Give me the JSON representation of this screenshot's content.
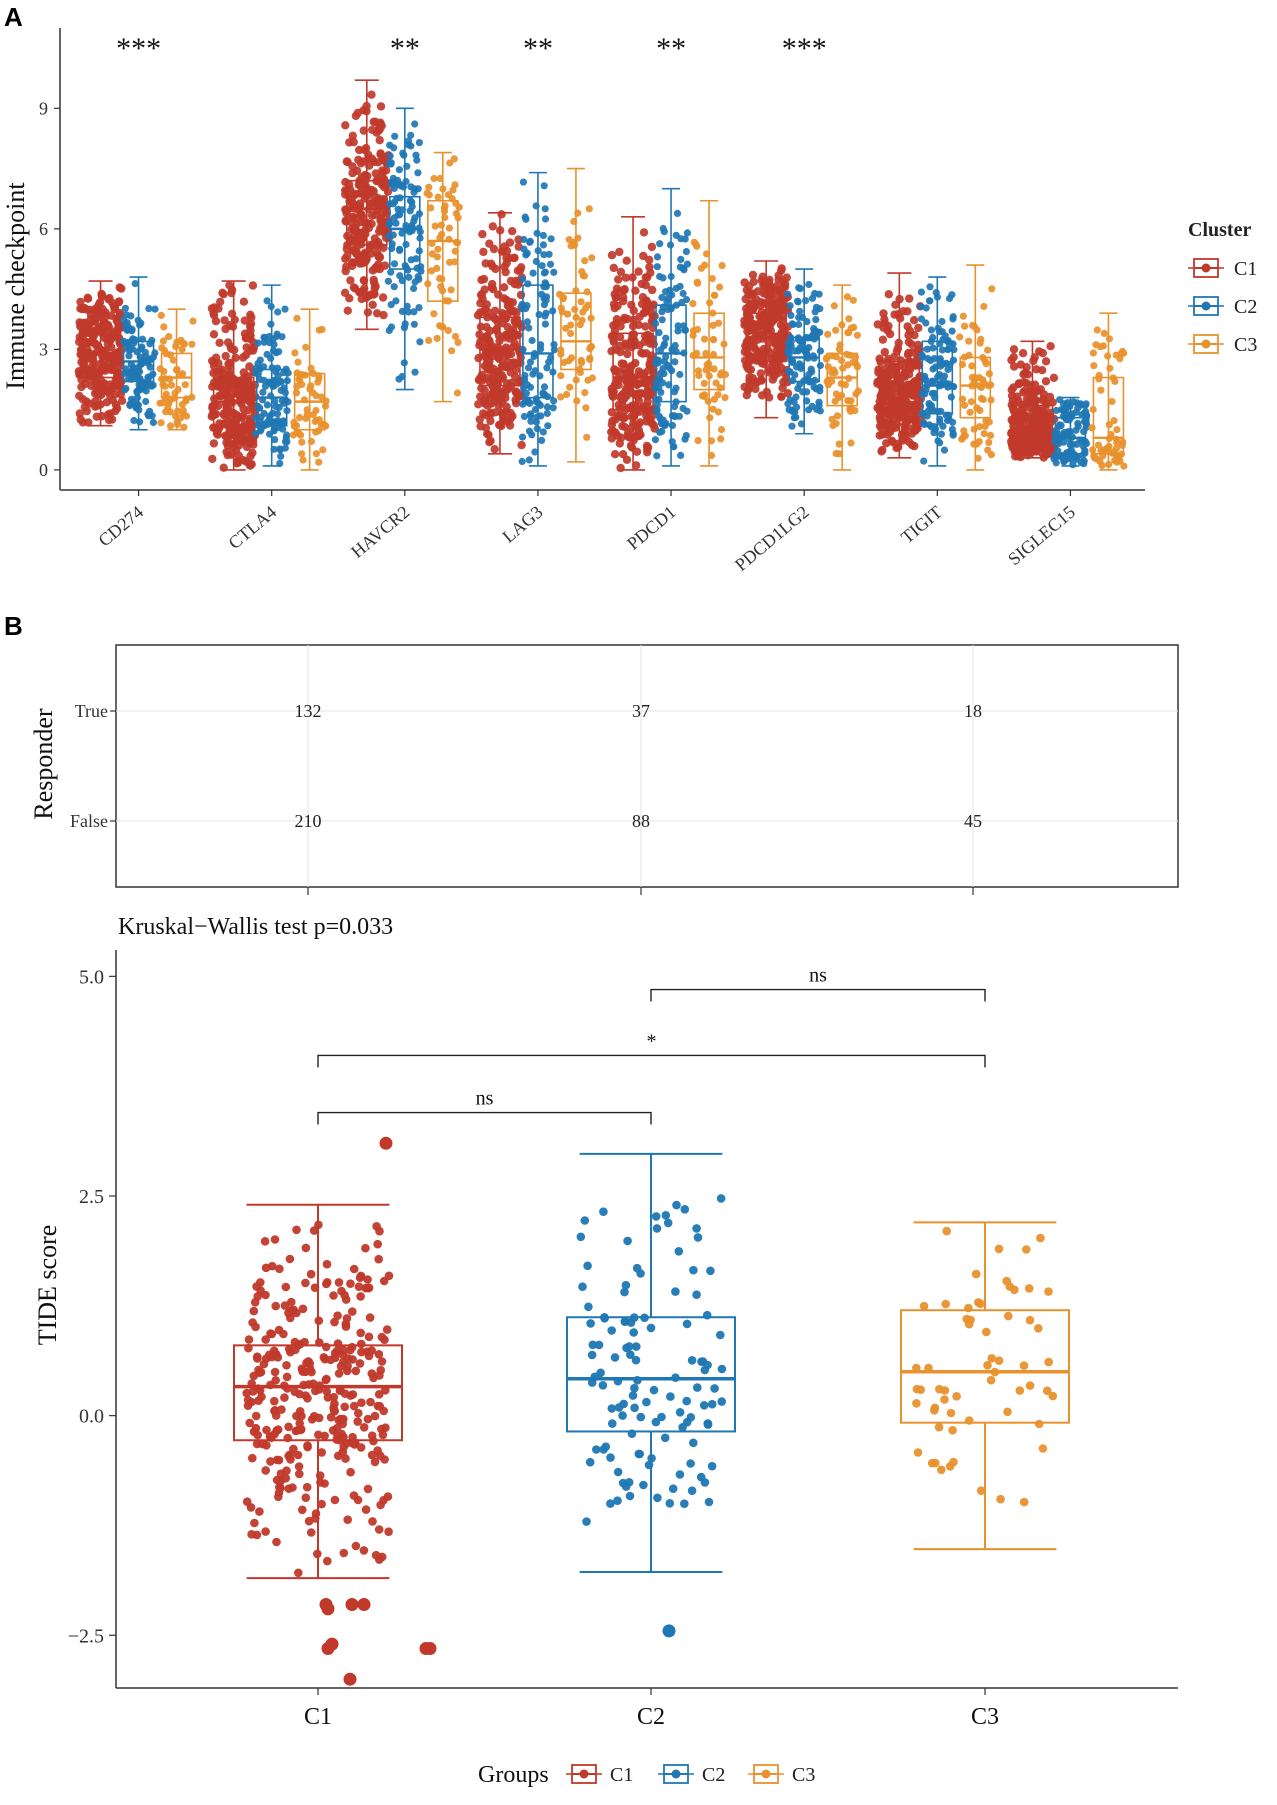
{
  "panel_a": {
    "label": "A",
    "chart_data": {
      "type": "boxplot_jitter",
      "ylabel": "Immune checkpoint",
      "ylim": [
        -0.5,
        11
      ],
      "yticks": [
        0,
        3,
        6,
        9
      ],
      "categories": [
        "CD274",
        "CTLA4",
        "HAVCR2",
        "LAG3",
        "PDCD1",
        "PDCD1LG2",
        "TIGIT",
        "SIGLEC15"
      ],
      "significance": [
        "***",
        "",
        "**",
        "**",
        "**",
        "***",
        "",
        ""
      ],
      "legend_title": "Cluster",
      "series": [
        {
          "name": "C1",
          "color": "#C0392B",
          "n": 342,
          "boxes": [
            {
              "min": 1.1,
              "q1": 2.3,
              "median": 2.9,
              "q3": 3.5,
              "max": 4.7
            },
            {
              "min": 0.0,
              "q1": 1.1,
              "median": 1.7,
              "q3": 2.3,
              "max": 4.7
            },
            {
              "min": 3.5,
              "q1": 5.6,
              "median": 6.5,
              "q3": 7.2,
              "max": 9.7
            },
            {
              "min": 0.4,
              "q1": 2.1,
              "median": 3.0,
              "q3": 3.8,
              "max": 6.4
            },
            {
              "min": 0.0,
              "q1": 1.5,
              "median": 2.3,
              "q3": 3.4,
              "max": 6.3
            },
            {
              "min": 1.3,
              "q1": 2.7,
              "median": 3.3,
              "q3": 3.9,
              "max": 5.2
            },
            {
              "min": 0.3,
              "q1": 1.5,
              "median": 2.0,
              "q3": 2.7,
              "max": 4.9
            },
            {
              "min": 0.3,
              "q1": 0.6,
              "median": 1.0,
              "q3": 1.6,
              "max": 3.2
            }
          ]
        },
        {
          "name": "C2",
          "color": "#1F77B4",
          "n": 125,
          "boxes": [
            {
              "min": 1.0,
              "q1": 2.2,
              "median": 2.7,
              "q3": 3.2,
              "max": 4.8
            },
            {
              "min": 0.1,
              "q1": 1.1,
              "median": 1.8,
              "q3": 2.5,
              "max": 4.6
            },
            {
              "min": 2.0,
              "q1": 5.0,
              "median": 6.0,
              "q3": 6.8,
              "max": 9.0
            },
            {
              "min": 0.1,
              "q1": 1.8,
              "median": 2.9,
              "q3": 4.6,
              "max": 7.4
            },
            {
              "min": 0.1,
              "q1": 1.7,
              "median": 2.9,
              "q3": 4.1,
              "max": 7.0
            },
            {
              "min": 0.9,
              "q1": 2.2,
              "median": 2.8,
              "q3": 3.3,
              "max": 5.0
            },
            {
              "min": 0.1,
              "q1": 1.4,
              "median": 2.1,
              "q3": 3.2,
              "max": 4.8
            },
            {
              "min": 0.1,
              "q1": 0.4,
              "median": 0.8,
              "q3": 1.3,
              "max": 1.8
            }
          ]
        },
        {
          "name": "C3",
          "color": "#E8912D",
          "n": 63,
          "boxes": [
            {
              "min": 1.0,
              "q1": 1.8,
              "median": 2.3,
              "q3": 2.9,
              "max": 4.0
            },
            {
              "min": 0.0,
              "q1": 1.0,
              "median": 1.7,
              "q3": 2.4,
              "max": 4.0
            },
            {
              "min": 1.7,
              "q1": 4.2,
              "median": 5.7,
              "q3": 6.7,
              "max": 7.9
            },
            {
              "min": 0.2,
              "q1": 2.5,
              "median": 3.2,
              "q3": 4.4,
              "max": 7.5
            },
            {
              "min": 0.1,
              "q1": 2.0,
              "median": 2.8,
              "q3": 3.9,
              "max": 6.7
            },
            {
              "min": 0.0,
              "q1": 1.6,
              "median": 2.3,
              "q3": 2.9,
              "max": 4.6
            },
            {
              "min": 0.0,
              "q1": 1.3,
              "median": 2.1,
              "q3": 2.8,
              "max": 5.1
            },
            {
              "min": 0.0,
              "q1": 0.4,
              "median": 0.8,
              "q3": 2.3,
              "max": 3.9
            }
          ]
        }
      ]
    }
  },
  "panel_b": {
    "label": "B",
    "table": {
      "chart_data": {
        "type": "table",
        "ylabel": "Responder",
        "rows": [
          "True",
          "False"
        ],
        "columns": [
          "C1",
          "C2",
          "C3"
        ],
        "values": [
          [
            132,
            37,
            18
          ],
          [
            210,
            88,
            45
          ]
        ]
      }
    },
    "boxplot": {
      "subtitle": "Kruskal−Wallis test p=0.033",
      "chart_data": {
        "type": "boxplot_jitter",
        "ylabel": "TIDE score",
        "ylim": [
          -3.1,
          5.3
        ],
        "yticks": [
          "−2.5",
          "0.0",
          "2.5",
          "5.0"
        ],
        "ytick_values": [
          -2.5,
          0.0,
          2.5,
          5.0
        ],
        "categories": [
          "C1",
          "C2",
          "C3"
        ],
        "legend_title": "Groups",
        "series": [
          {
            "name": "C1",
            "color": "#C0392B",
            "n": 342,
            "box": {
              "min": -1.85,
              "q1": -0.28,
              "median": 0.33,
              "q3": 0.8,
              "max": 2.4
            },
            "outliers": [
              3.1,
              -2.15,
              -2.2,
              -2.15,
              -2.15,
              -2.6,
              -2.65,
              -2.65,
              -2.65,
              -3.0
            ]
          },
          {
            "name": "C2",
            "color": "#1F77B4",
            "n": 125,
            "box": {
              "min": -1.78,
              "q1": -0.18,
              "median": 0.42,
              "q3": 1.12,
              "max": 2.98
            },
            "outliers": [
              -2.45
            ]
          },
          {
            "name": "C3",
            "color": "#E8912D",
            "n": 63,
            "box": {
              "min": -1.52,
              "q1": -0.08,
              "median": 0.5,
              "q3": 1.2,
              "max": 2.2
            },
            "outliers": []
          }
        ],
        "comparisons": [
          {
            "from": "C2",
            "to": "C3",
            "label": "ns",
            "y": 4.85
          },
          {
            "from": "C1",
            "to": "C3",
            "label": "*",
            "y": 4.1
          },
          {
            "from": "C1",
            "to": "C2",
            "label": "ns",
            "y": 3.45
          }
        ]
      }
    }
  }
}
